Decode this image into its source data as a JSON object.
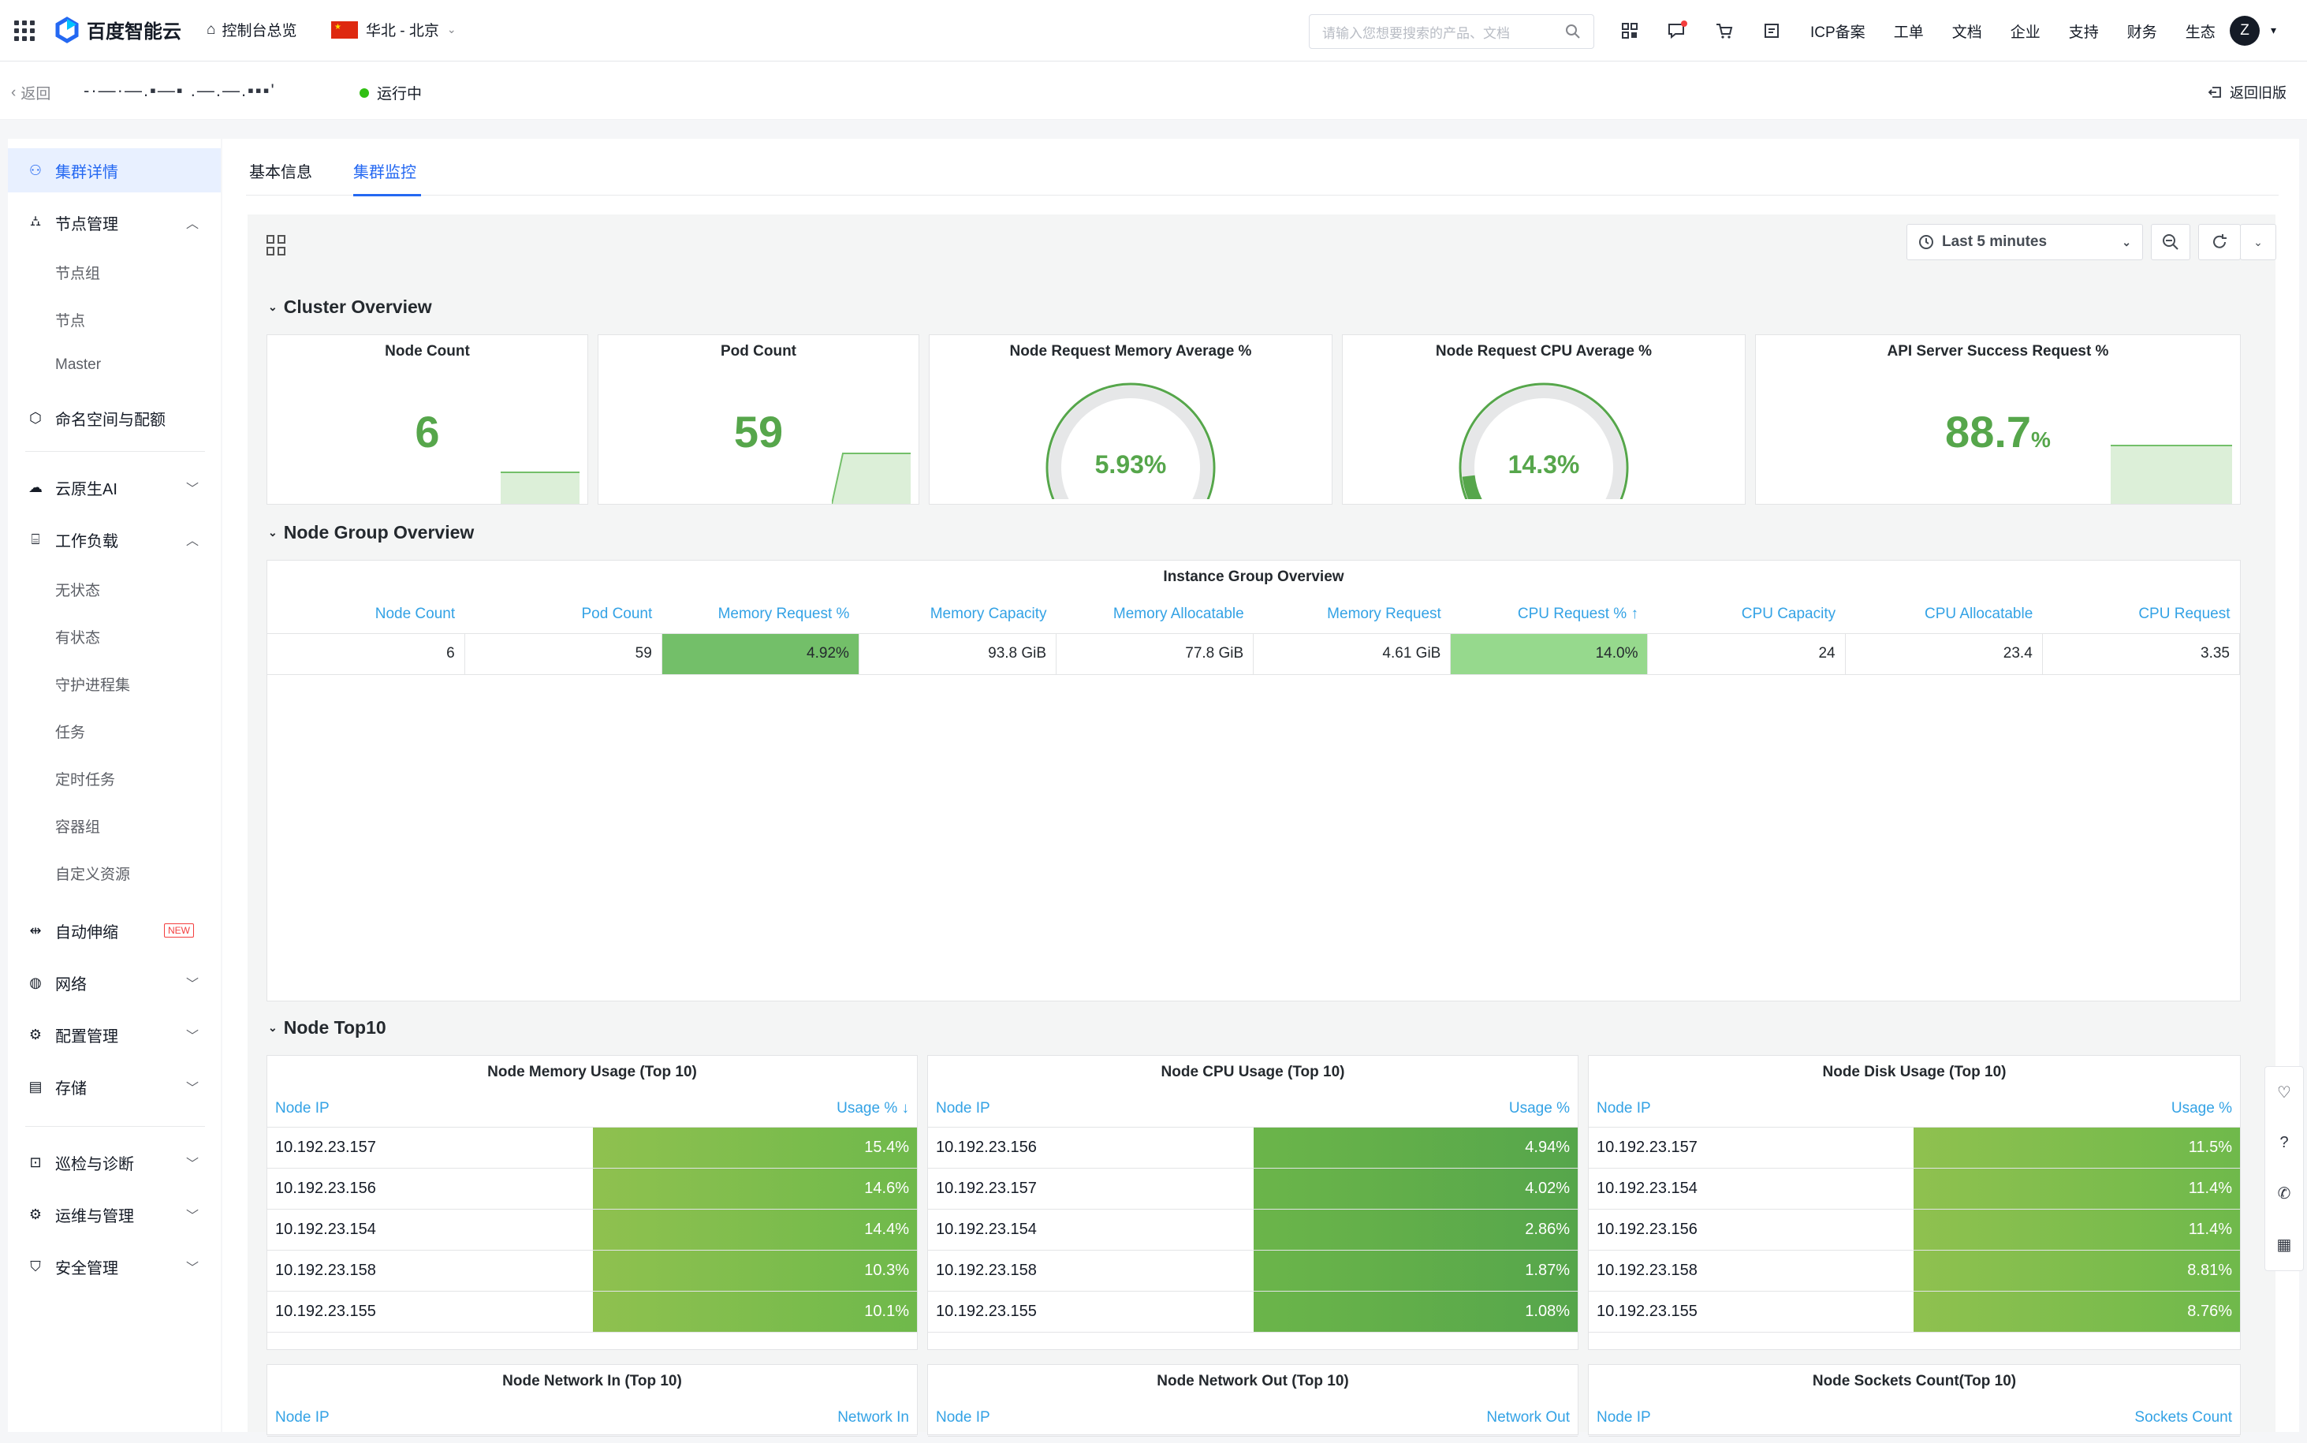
{
  "topnav": {
    "brand": "百度智能云",
    "overview": "控制台总览",
    "region": "华北 - 北京",
    "search_placeholder": "请输入您想要搜索的产品、文档",
    "links": [
      "ICP备案",
      "工单",
      "文档",
      "企业",
      "支持",
      "财务",
      "生态"
    ],
    "avatar": "Z"
  },
  "subbar": {
    "back": "返回",
    "cluster_name": "-·—·—.▪—▪  .—.—.▪▪▪'",
    "status": "运行中",
    "old_version": "返回旧版"
  },
  "sidebar": {
    "cluster_detail": "集群详情",
    "node_mgmt": "节点管理",
    "node_subs": [
      "节点组",
      "节点",
      "Master"
    ],
    "namespace": "命名空间与配额",
    "cloud_ai": "云原生AI",
    "workload": "工作负载",
    "workload_subs": [
      "无状态",
      "有状态",
      "守护进程集",
      "任务",
      "定时任务",
      "容器组",
      "自定义资源"
    ],
    "autoscale": "自动伸缩",
    "new_badge": "NEW",
    "network": "网络",
    "config": "配置管理",
    "storage": "存储",
    "inspect": "巡检与诊断",
    "ops": "运维与管理",
    "security": "安全管理"
  },
  "tabs": {
    "basic": "基本信息",
    "monitor": "集群监控"
  },
  "toolbar": {
    "time_range": "Last 5 minutes"
  },
  "cluster_overview": {
    "title": "Cluster Overview",
    "node_count": {
      "title": "Node Count",
      "value": "6"
    },
    "pod_count": {
      "title": "Pod Count",
      "value": "59"
    },
    "mem_req": {
      "title": "Node Request Memory Average %",
      "value": "5.93%",
      "level": 0.0593
    },
    "cpu_req": {
      "title": "Node Request CPU Average %",
      "value": "14.3%",
      "level": 0.143
    },
    "api_success": {
      "title": "API Server Success Request %",
      "value": "88.7",
      "unit": "%"
    }
  },
  "node_group": {
    "title": "Node Group Overview",
    "table_title": "Instance Group Overview",
    "headers": [
      "Node Count",
      "Pod Count",
      "Memory Request %",
      "Memory Capacity",
      "Memory Allocatable",
      "Memory Request",
      "CPU Request % ↑",
      "CPU Capacity",
      "CPU Allocatable",
      "CPU Request"
    ],
    "row": [
      "6",
      "59",
      "4.92%",
      "93.8 GiB",
      "77.8 GiB",
      "4.61 GiB",
      "14.0%",
      "24",
      "23.4",
      "3.35"
    ]
  },
  "top10": {
    "title": "Node Top10",
    "memory": {
      "title": "Node Memory Usage (Top 10)",
      "h_ip": "Node IP",
      "h_val": "Usage % ↓",
      "rows": [
        [
          "10.192.23.157",
          "15.4%"
        ],
        [
          "10.192.23.156",
          "14.6%"
        ],
        [
          "10.192.23.154",
          "14.4%"
        ],
        [
          "10.192.23.158",
          "10.3%"
        ],
        [
          "10.192.23.155",
          "10.1%"
        ]
      ]
    },
    "cpu": {
      "title": "Node CPU Usage (Top 10)",
      "h_ip": "Node IP",
      "h_val": "Usage %",
      "rows": [
        [
          "10.192.23.156",
          "4.94%"
        ],
        [
          "10.192.23.157",
          "4.02%"
        ],
        [
          "10.192.23.154",
          "2.86%"
        ],
        [
          "10.192.23.158",
          "1.87%"
        ],
        [
          "10.192.23.155",
          "1.08%"
        ]
      ]
    },
    "disk": {
      "title": "Node Disk Usage (Top 10)",
      "h_ip": "Node IP",
      "h_val": "Usage %",
      "rows": [
        [
          "10.192.23.157",
          "11.5%"
        ],
        [
          "10.192.23.154",
          "11.4%"
        ],
        [
          "10.192.23.156",
          "11.4%"
        ],
        [
          "10.192.23.158",
          "8.81%"
        ],
        [
          "10.192.23.155",
          "8.76%"
        ]
      ]
    },
    "net_in": {
      "title": "Node Network In (Top 10)",
      "h_ip": "Node IP",
      "h_val": "Network In"
    },
    "net_out": {
      "title": "Node Network Out (Top 10)",
      "h_ip": "Node IP",
      "h_val": "Network Out"
    },
    "sockets": {
      "title": "Node Sockets Count(Top 10)",
      "h_ip": "Node IP",
      "h_val": "Sockets Count"
    }
  }
}
